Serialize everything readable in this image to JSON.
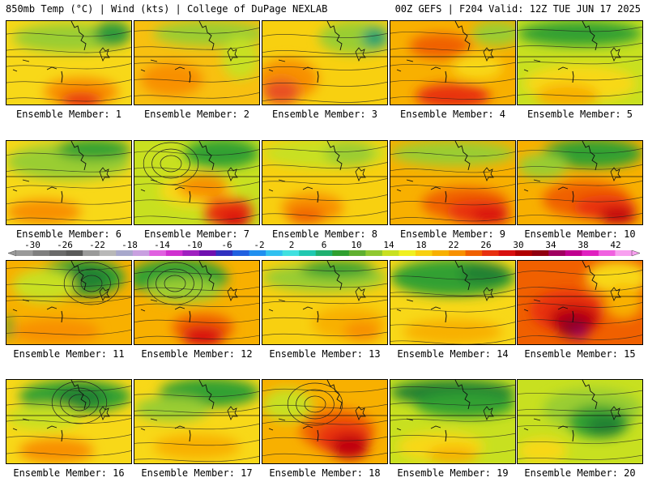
{
  "header": {
    "left": "850mb Temp (°C) | Wind (kts) | College of DuPage NEXLAB",
    "right": "00Z GEFS | F204 Valid: 12Z TUE JUN 17 2025"
  },
  "colorbar": {
    "ticks": [
      "-30",
      "-26",
      "-22",
      "-18",
      "-14",
      "-10",
      "-6",
      "-2",
      "2",
      "6",
      "10",
      "14",
      "18",
      "22",
      "26",
      "30",
      "34",
      "38",
      "42"
    ],
    "colors": [
      "#9a9a9a",
      "#7f7f7f",
      "#6b6b6b",
      "#5a5a5a",
      "#9a9a9a",
      "#b8b8b8",
      "#a8a8cc",
      "#c8a0e0",
      "#e060e0",
      "#d030d0",
      "#a020c0",
      "#7010b0",
      "#3030c0",
      "#2060e0",
      "#2090f0",
      "#30c0f0",
      "#40e0e0",
      "#20c8b0",
      "#20b070",
      "#30a030",
      "#60b030",
      "#90c830",
      "#c8e020",
      "#f0f020",
      "#f8d010",
      "#f8b000",
      "#f89000",
      "#f06000",
      "#e83010",
      "#d81010",
      "#b00000",
      "#900010",
      "#a00060",
      "#c00090",
      "#e020c0",
      "#f060e0",
      "#f8a0f0"
    ]
  },
  "panels": [
    {
      "label": "Ensemble Member: 1",
      "base": "#f8d818",
      "blobs": [
        [
          "#9acd32",
          0.5,
          0.2,
          0.9,
          0.35
        ],
        [
          "#2e9a3a",
          0.85,
          0.15,
          0.3,
          0.3
        ],
        [
          "#f89000",
          0.6,
          0.85,
          0.6,
          0.35
        ],
        [
          "#e83010",
          0.6,
          0.95,
          0.35,
          0.2
        ]
      ]
    },
    {
      "label": "Ensemble Member: 2",
      "base": "#f8c010",
      "blobs": [
        [
          "#9acd32",
          0.6,
          0.15,
          0.9,
          0.3
        ],
        [
          "#f89000",
          0.3,
          0.7,
          0.5,
          0.4
        ],
        [
          "#c8e020",
          0.85,
          0.45,
          0.3,
          0.5
        ]
      ]
    },
    {
      "label": "Ensemble Member: 3",
      "base": "#f8d010",
      "blobs": [
        [
          "#9acd32",
          0.75,
          0.2,
          0.6,
          0.4
        ],
        [
          "#20a070",
          0.9,
          0.2,
          0.2,
          0.25
        ],
        [
          "#f89000",
          0.2,
          0.7,
          0.5,
          0.5
        ],
        [
          "#e85020",
          0.15,
          0.85,
          0.3,
          0.3
        ]
      ]
    },
    {
      "label": "Ensemble Member: 4",
      "base": "#f8b000",
      "blobs": [
        [
          "#9acd32",
          0.85,
          0.15,
          0.4,
          0.3
        ],
        [
          "#f06000",
          0.4,
          0.3,
          0.5,
          0.3
        ],
        [
          "#e83010",
          0.5,
          0.9,
          0.6,
          0.3
        ],
        [
          "#f8d818",
          0.7,
          0.55,
          0.4,
          0.3
        ]
      ]
    },
    {
      "label": "Ensemble Member: 5",
      "base": "#c8e020",
      "blobs": [
        [
          "#30a030",
          0.5,
          0.15,
          1.0,
          0.3
        ],
        [
          "#f8d818",
          0.5,
          0.75,
          0.9,
          0.45
        ],
        [
          "#f8b000",
          0.4,
          0.9,
          0.5,
          0.3
        ]
      ]
    },
    {
      "label": "Ensemble Member: 6",
      "base": "#f8d818",
      "blobs": [
        [
          "#9acd32",
          0.5,
          0.25,
          1.0,
          0.45
        ],
        [
          "#30a030",
          0.7,
          0.1,
          0.6,
          0.25
        ],
        [
          "#f89000",
          0.3,
          0.85,
          0.6,
          0.3
        ]
      ]
    },
    {
      "label": "Ensemble Member: 7",
      "base": "#c8e020",
      "blobs": [
        [
          "#30a030",
          0.7,
          0.15,
          0.6,
          0.35
        ],
        [
          "#f8d818",
          0.5,
          0.6,
          0.6,
          0.4
        ],
        [
          "#f89000",
          0.55,
          0.55,
          0.4,
          0.3
        ],
        [
          "#e83010",
          0.75,
          0.85,
          0.4,
          0.35
        ],
        [
          "#d81010",
          0.8,
          0.95,
          0.25,
          0.2
        ]
      ]
    },
    {
      "label": "Ensemble Member: 8",
      "base": "#f8d010",
      "blobs": [
        [
          "#c8e020",
          0.5,
          0.15,
          1.0,
          0.35
        ],
        [
          "#9acd32",
          0.7,
          0.15,
          0.4,
          0.3
        ],
        [
          "#f89000",
          0.4,
          0.8,
          0.5,
          0.35
        ],
        [
          "#f06000",
          0.35,
          0.9,
          0.3,
          0.2
        ]
      ]
    },
    {
      "label": "Ensemble Member: 9",
      "base": "#f8b000",
      "blobs": [
        [
          "#9acd32",
          0.5,
          0.15,
          1.0,
          0.3
        ],
        [
          "#f06000",
          0.6,
          0.75,
          0.7,
          0.4
        ],
        [
          "#e83010",
          0.7,
          0.85,
          0.5,
          0.3
        ],
        [
          "#d81010",
          0.8,
          0.9,
          0.3,
          0.2
        ]
      ]
    },
    {
      "label": "Ensemble Member: 10",
      "base": "#f8b000",
      "blobs": [
        [
          "#30a030",
          0.6,
          0.15,
          0.8,
          0.35
        ],
        [
          "#9acd32",
          0.2,
          0.3,
          0.4,
          0.3
        ],
        [
          "#f06000",
          0.55,
          0.7,
          0.7,
          0.45
        ],
        [
          "#e83010",
          0.7,
          0.8,
          0.5,
          0.3
        ],
        [
          "#c00010",
          0.8,
          0.9,
          0.3,
          0.2
        ]
      ]
    },
    {
      "label": "Ensemble Member: 11",
      "base": "#f8b000",
      "blobs": [
        [
          "#30a030",
          0.6,
          0.2,
          0.7,
          0.45
        ],
        [
          "#208030",
          0.65,
          0.2,
          0.35,
          0.3
        ],
        [
          "#c8e020",
          0.3,
          0.3,
          0.5,
          0.4
        ],
        [
          "#f89000",
          0.4,
          0.85,
          0.7,
          0.3
        ],
        [
          "#30a030",
          0.02,
          0.8,
          0.06,
          0.3
        ]
      ]
    },
    {
      "label": "Ensemble Member: 12",
      "base": "#f8b000",
      "blobs": [
        [
          "#30a030",
          0.35,
          0.2,
          0.8,
          0.45
        ],
        [
          "#9acd32",
          0.4,
          0.35,
          0.6,
          0.3
        ],
        [
          "#f06000",
          0.55,
          0.8,
          0.5,
          0.35
        ],
        [
          "#d81010",
          0.55,
          0.9,
          0.35,
          0.25
        ]
      ]
    },
    {
      "label": "Ensemble Member: 13",
      "base": "#f8d010",
      "blobs": [
        [
          "#9acd32",
          0.5,
          0.2,
          1.0,
          0.35
        ],
        [
          "#30a030",
          0.6,
          0.1,
          0.6,
          0.2
        ],
        [
          "#f8b000",
          0.7,
          0.75,
          0.6,
          0.4
        ],
        [
          "#f89000",
          0.8,
          0.85,
          0.3,
          0.25
        ]
      ]
    },
    {
      "label": "Ensemble Member: 14",
      "base": "#f8d818",
      "blobs": [
        [
          "#30a030",
          0.5,
          0.2,
          1.0,
          0.45
        ],
        [
          "#208030",
          0.75,
          0.15,
          0.4,
          0.25
        ],
        [
          "#f8b000",
          0.5,
          0.85,
          0.8,
          0.3
        ]
      ]
    },
    {
      "label": "Ensemble Member: 15",
      "base": "#f06000",
      "blobs": [
        [
          "#f8d818",
          0.8,
          0.2,
          0.5,
          0.4
        ],
        [
          "#f8b000",
          0.85,
          0.5,
          0.3,
          0.4
        ],
        [
          "#e83010",
          0.4,
          0.6,
          0.6,
          0.5
        ],
        [
          "#c00010",
          0.45,
          0.7,
          0.4,
          0.35
        ],
        [
          "#900020",
          0.45,
          0.8,
          0.25,
          0.25
        ],
        [
          "#a00060",
          0.5,
          0.88,
          0.12,
          0.12
        ]
      ]
    },
    {
      "label": "Ensemble Member: 16",
      "base": "#f8d818",
      "blobs": [
        [
          "#30a030",
          0.55,
          0.2,
          0.9,
          0.4
        ],
        [
          "#208030",
          0.6,
          0.2,
          0.4,
          0.25
        ],
        [
          "#c8e020",
          0.3,
          0.45,
          0.6,
          0.3
        ],
        [
          "#f89000",
          0.4,
          0.85,
          0.6,
          0.3
        ]
      ]
    },
    {
      "label": "Ensemble Member: 17",
      "base": "#f8d818",
      "blobs": [
        [
          "#30a030",
          0.6,
          0.15,
          0.8,
          0.35
        ],
        [
          "#9acd32",
          0.3,
          0.35,
          0.6,
          0.3
        ],
        [
          "#f8b000",
          0.5,
          0.8,
          0.7,
          0.3
        ]
      ]
    },
    {
      "label": "Ensemble Member: 18",
      "base": "#f8b000",
      "blobs": [
        [
          "#c8e020",
          0.2,
          0.3,
          0.4,
          0.4
        ],
        [
          "#f06000",
          0.6,
          0.6,
          0.6,
          0.5
        ],
        [
          "#e83010",
          0.65,
          0.7,
          0.45,
          0.4
        ],
        [
          "#c00010",
          0.7,
          0.8,
          0.3,
          0.3
        ]
      ]
    },
    {
      "label": "Ensemble Member: 19",
      "base": "#c8e020",
      "blobs": [
        [
          "#208030",
          0.5,
          0.15,
          1.0,
          0.3
        ],
        [
          "#30a030",
          0.6,
          0.3,
          0.8,
          0.3
        ],
        [
          "#f8d818",
          0.4,
          0.8,
          0.7,
          0.35
        ],
        [
          "#f8b000",
          0.5,
          0.9,
          0.4,
          0.2
        ]
      ]
    },
    {
      "label": "Ensemble Member: 20",
      "base": "#c8e020",
      "blobs": [
        [
          "#9acd32",
          0.6,
          0.35,
          0.8,
          0.5
        ],
        [
          "#30a030",
          0.65,
          0.5,
          0.5,
          0.4
        ],
        [
          "#208030",
          0.7,
          0.55,
          0.3,
          0.25
        ],
        [
          "#f8d818",
          0.2,
          0.85,
          0.4,
          0.3
        ]
      ]
    }
  ]
}
